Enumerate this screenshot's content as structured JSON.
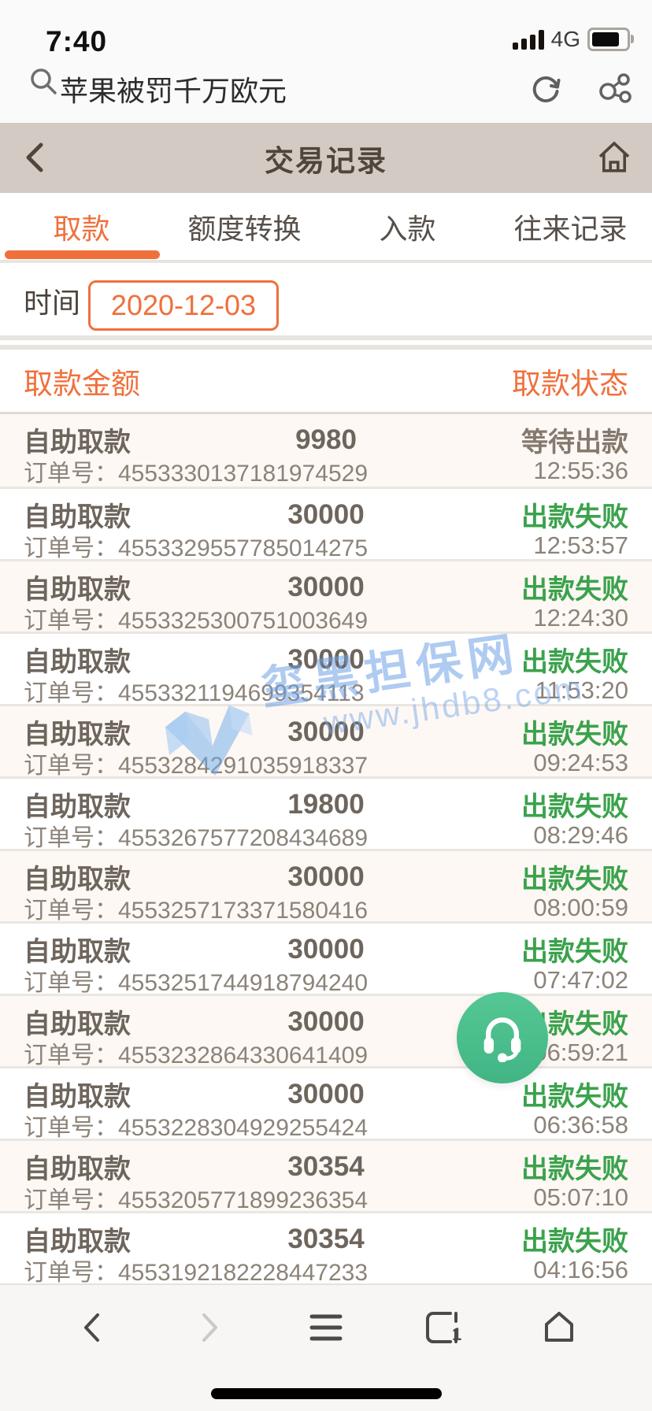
{
  "colors": {
    "accent_orange": "#f0703c",
    "status_green": "#3ba24c",
    "pending_gray": "#85796f",
    "header_tan": "#d3cac3",
    "row_cream": "#fdf8f4",
    "service_green": "#4cc08d",
    "watermark_blue": "#6ea0e6"
  },
  "status_bar": {
    "time": "7:40",
    "network": "4G",
    "signal_icon": "signal-bars-icon",
    "battery_icon": "battery-icon"
  },
  "search_bar": {
    "query": "苹果被罚千万欧元",
    "search_icon": "search-icon",
    "refresh_icon": "refresh-icon",
    "share_icon": "share-icon"
  },
  "header": {
    "back_icon": "back-chevron-icon",
    "title": "交易记录",
    "home_icon": "home-icon"
  },
  "tabs": [
    {
      "label": "取款",
      "active": true
    },
    {
      "label": "额度转换",
      "active": false
    },
    {
      "label": "入款",
      "active": false
    },
    {
      "label": "往来记录",
      "active": false
    }
  ],
  "filter": {
    "label": "时间",
    "date_value": "2020-12-03"
  },
  "table": {
    "amount_header": "取款金额",
    "status_header": "取款状态",
    "order_prefix": "订单号：",
    "rows": [
      {
        "type_label": "自助取款",
        "amount": "9980",
        "status": "等待出款",
        "status_kind": "pending",
        "order_no": "4553330137181974529",
        "time": "12:55:36"
      },
      {
        "type_label": "自助取款",
        "amount": "30000",
        "status": "出款失败",
        "status_kind": "failed",
        "order_no": "4553329557785014275",
        "time": "12:53:57"
      },
      {
        "type_label": "自助取款",
        "amount": "30000",
        "status": "出款失败",
        "status_kind": "failed",
        "order_no": "4553325300751003649",
        "time": "12:24:30"
      },
      {
        "type_label": "自助取款",
        "amount": "30000",
        "status": "出款失败",
        "status_kind": "failed",
        "order_no": "4553321194699354113",
        "time": "11:53:20"
      },
      {
        "type_label": "自助取款",
        "amount": "30000",
        "status": "出款失败",
        "status_kind": "failed",
        "order_no": "4553284291035918337",
        "time": "09:24:53"
      },
      {
        "type_label": "自助取款",
        "amount": "19800",
        "status": "出款失败",
        "status_kind": "failed",
        "order_no": "4553267577208434689",
        "time": "08:29:46"
      },
      {
        "type_label": "自助取款",
        "amount": "30000",
        "status": "出款失败",
        "status_kind": "failed",
        "order_no": "4553257173371580416",
        "time": "08:00:59"
      },
      {
        "type_label": "自助取款",
        "amount": "30000",
        "status": "出款失败",
        "status_kind": "failed",
        "order_no": "4553251744918794240",
        "time": "07:47:02"
      },
      {
        "type_label": "自助取款",
        "amount": "30000",
        "status": "出款失败",
        "status_kind": "failed",
        "order_no": "4553232864330641409",
        "time": "06:59:21"
      },
      {
        "type_label": "自助取款",
        "amount": "30000",
        "status": "出款失败",
        "status_kind": "failed",
        "order_no": "4553228304929255424",
        "time": "06:36:58"
      },
      {
        "type_label": "自助取款",
        "amount": "30354",
        "status": "出款失败",
        "status_kind": "failed",
        "order_no": "4553205771899236354",
        "time": "05:07:10"
      },
      {
        "type_label": "自助取款",
        "amount": "30354",
        "status": "出款失败",
        "status_kind": "failed",
        "order_no": "4553192182228447233",
        "time": "04:16:56"
      }
    ]
  },
  "watermark": {
    "site_name": "玺黑担保网",
    "site_url": "www.jhdb8.com",
    "logo": "cube-check-logo"
  },
  "service_button": {
    "icon": "headset-icon"
  },
  "nav_bar": {
    "tab_count": "1"
  }
}
